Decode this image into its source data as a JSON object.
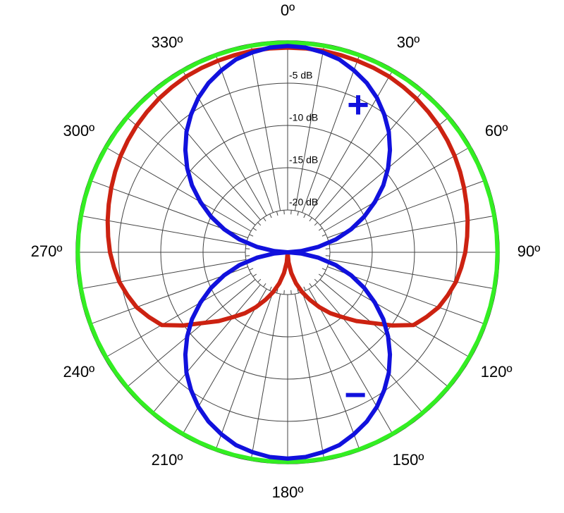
{
  "chart_data": {
    "type": "polar",
    "x": [
      0,
      5,
      10,
      15,
      20,
      25,
      30,
      35,
      40,
      45,
      50,
      55,
      60,
      65,
      70,
      75,
      80,
      85,
      90,
      95,
      100,
      105,
      110,
      115,
      120,
      125,
      130,
      135,
      140,
      145,
      150,
      155,
      160,
      165,
      170,
      175,
      180,
      185,
      190,
      195,
      200,
      205,
      210,
      215,
      220,
      225,
      230,
      235,
      240,
      245,
      250,
      255,
      260,
      265,
      270,
      275,
      280,
      285,
      290,
      295,
      300,
      305,
      310,
      315,
      320,
      325,
      330,
      335,
      340,
      345,
      350,
      355
    ],
    "xticks": [
      {
        "value": 0,
        "label": "0º"
      },
      {
        "value": 30,
        "label": "30º"
      },
      {
        "value": 60,
        "label": "60º"
      },
      {
        "value": 90,
        "label": "90º"
      },
      {
        "value": 120,
        "label": "120º"
      },
      {
        "value": 150,
        "label": "150º"
      },
      {
        "value": 180,
        "label": "180º"
      },
      {
        "value": 210,
        "label": "210º"
      },
      {
        "value": 240,
        "label": "240º"
      },
      {
        "value": 270,
        "label": "270º"
      },
      {
        "value": 300,
        "label": "300º"
      },
      {
        "value": 330,
        "label": "330º"
      }
    ],
    "ylim": [
      -25,
      0
    ],
    "yticks": [
      {
        "value": -5,
        "label": "-5 dB"
      },
      {
        "value": -10,
        "label": "-10 dB"
      },
      {
        "value": -15,
        "label": "-15 dB"
      },
      {
        "value": -20,
        "label": "-20 dB"
      }
    ],
    "grid": true,
    "annotations": [
      "+",
      "−"
    ],
    "series": [
      {
        "color": "#33ee22",
        "values": [
          -0.2,
          -0.2,
          -0.2,
          -0.2,
          -0.2,
          -0.2,
          -0.2,
          -0.2,
          -0.2,
          -0.2,
          -0.2,
          -0.2,
          -0.2,
          -0.2,
          -0.2,
          -0.2,
          -0.2,
          -0.2,
          -0.2,
          -0.2,
          -0.2,
          -0.2,
          -0.2,
          -0.2,
          -0.2,
          -0.2,
          -0.2,
          -0.2,
          -0.2,
          -0.2,
          -0.2,
          -0.2,
          -0.2,
          -0.2,
          -0.2,
          -0.2,
          -0.2,
          -0.2,
          -0.2,
          -0.2,
          -0.2,
          -0.2,
          -0.2,
          -0.2,
          -0.2,
          -0.2,
          -0.2,
          -0.2,
          -0.2,
          -0.2,
          -0.2,
          -0.2,
          -0.2,
          -0.2,
          -0.2,
          -0.2,
          -0.2,
          -0.2,
          -0.2,
          -0.2,
          -0.2,
          -0.2,
          -0.2,
          -0.2,
          -0.2,
          -0.2,
          -0.2,
          -0.2,
          -0.2,
          -0.2,
          -0.2,
          -0.2
        ]
      },
      {
        "color": "#cc2211",
        "values": [
          -0.8,
          -0.8,
          -0.8,
          -0.85,
          -0.9,
          -0.95,
          -1.0,
          -1.15,
          -1.3,
          -1.5,
          -1.7,
          -1.95,
          -2.2,
          -2.5,
          -2.8,
          -3.1,
          -3.4,
          -3.7,
          -4.0,
          -4.4,
          -4.8,
          -5.4,
          -6.0,
          -6.9,
          -7.8,
          -9.9,
          -12,
          -13.5,
          -15,
          -16.2,
          -17.5,
          -18.8,
          -20,
          -21.2,
          -22.5,
          -23.8,
          -25,
          -23.8,
          -22.5,
          -21.2,
          -20,
          -18.8,
          -17.5,
          -16.2,
          -15,
          -13.5,
          -12,
          -9.9,
          -7.8,
          -6.9,
          -6.0,
          -5.4,
          -4.8,
          -4.4,
          -4.0,
          -3.7,
          -3.4,
          -3.1,
          -2.8,
          -2.5,
          -2.2,
          -1.95,
          -1.7,
          -1.5,
          -1.3,
          -1.15,
          -1.0,
          -0.95,
          -0.9,
          -0.85,
          -0.8,
          -0.8
        ]
      },
      {
        "color": "#1111dd",
        "values": [
          -0.6,
          -0.7,
          -1.0,
          -1.4,
          -2.1,
          -2.9,
          -3.9,
          -5.1,
          -6.4,
          -7.9,
          -9.5,
          -11.2,
          -13.1,
          -15.0,
          -17.0,
          -19.1,
          -21.3,
          -23.4,
          -25,
          -23.4,
          -21.3,
          -19.1,
          -17.0,
          -15.0,
          -13.1,
          -11.2,
          -9.5,
          -7.9,
          -6.4,
          -5.1,
          -3.9,
          -2.9,
          -2.1,
          -1.4,
          -1.0,
          -0.7,
          -0.6,
          -0.7,
          -1.0,
          -1.4,
          -2.1,
          -2.9,
          -3.9,
          -5.1,
          -6.4,
          -7.9,
          -9.5,
          -11.2,
          -13.1,
          -15.0,
          -17.0,
          -19.1,
          -21.3,
          -23.4,
          -25,
          -23.4,
          -21.3,
          -19.1,
          -17.0,
          -15.0,
          -13.1,
          -11.2,
          -9.5,
          -7.9,
          -6.4,
          -5.1,
          -3.9,
          -2.9,
          -2.1,
          -1.4,
          -1.0,
          -0.7
        ]
      }
    ]
  }
}
